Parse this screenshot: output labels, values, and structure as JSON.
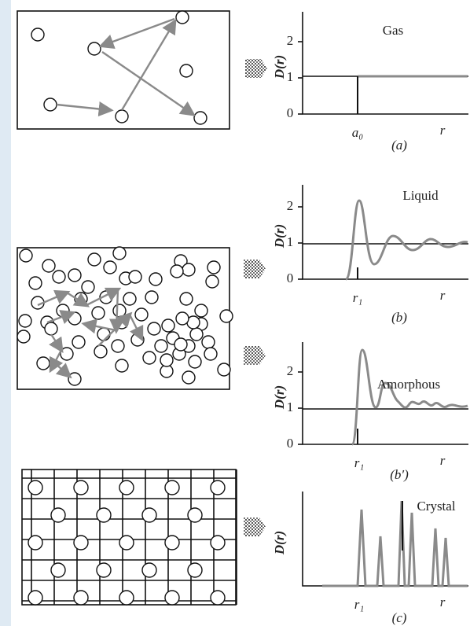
{
  "panels": [
    {
      "phase": "Gas",
      "axis_label": "D(r)",
      "ticks": [
        0,
        1,
        2
      ],
      "x_marker": "a₀",
      "x_end": "r",
      "caption": "(a)"
    },
    {
      "phase": "Liquid",
      "axis_label": "D(r)",
      "ticks": [
        0,
        1,
        2
      ],
      "x_marker": "r₁",
      "x_end": "r",
      "caption": "(b)"
    },
    {
      "phase": "Amorphous",
      "axis_label": "D(r)",
      "ticks": [
        0,
        1,
        2
      ],
      "x_marker": "r₁",
      "x_end": "r",
      "caption": "(b′)"
    },
    {
      "phase": "Crystal",
      "axis_label": "D(r)",
      "ticks": [],
      "x_marker": "r₁",
      "x_end": "r",
      "caption": "(c)"
    }
  ]
}
